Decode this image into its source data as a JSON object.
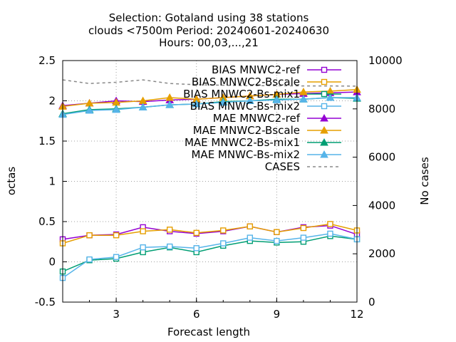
{
  "chart_data": {
    "type": "line",
    "title_lines": [
      "Selection: Gotaland using    38 stations",
      "clouds <7500m   Period: 20240601-20240630",
      "Hours: 00,03,...,21"
    ],
    "xlabel": "Forecast length",
    "ylabel": "octas",
    "y2label": "No cases",
    "xlim": [
      1,
      12
    ],
    "ylim": [
      -0.5,
      2.5
    ],
    "y2lim": [
      0,
      10000
    ],
    "xticks": [
      "3",
      "6",
      "9",
      "12"
    ],
    "yticks": [
      "-0.5",
      "0",
      "0.5",
      "1",
      "1.5",
      "2",
      "2.5"
    ],
    "y2ticks": [
      "0",
      "2000",
      "4000",
      "6000",
      "8000",
      "10000"
    ],
    "grid": true,
    "legend_position": "top-right",
    "x": [
      1,
      2,
      3,
      4,
      5,
      6,
      7,
      8,
      9,
      10,
      11,
      12
    ],
    "series": [
      {
        "name": "BIAS MNWC2-ref",
        "axis": "y1",
        "color": "#9400d3",
        "marker": "open-square",
        "dash": "",
        "values": [
          0.28,
          0.33,
          0.34,
          0.43,
          0.38,
          0.35,
          0.38,
          0.44,
          0.37,
          0.43,
          0.45,
          0.34
        ]
      },
      {
        "name": "BIAS MNWC2-Bscale",
        "axis": "y1",
        "color": "#e69f00",
        "marker": "open-square",
        "dash": "",
        "values": [
          0.23,
          0.33,
          0.33,
          0.38,
          0.4,
          0.36,
          0.39,
          0.44,
          0.37,
          0.42,
          0.47,
          0.39
        ]
      },
      {
        "name": "BIAS MNWC2-Bs-mix1",
        "axis": "y1",
        "color": "#009e73",
        "marker": "open-square",
        "dash": "",
        "values": [
          -0.12,
          0.02,
          0.04,
          0.12,
          0.18,
          0.12,
          0.2,
          0.26,
          0.24,
          0.25,
          0.32,
          0.28
        ]
      },
      {
        "name": "BIAS MNWC-Bs-mix2",
        "axis": "y1",
        "color": "#56b4e9",
        "marker": "open-square",
        "dash": "",
        "values": [
          -0.2,
          0.03,
          0.06,
          0.18,
          0.19,
          0.17,
          0.23,
          0.3,
          0.26,
          0.3,
          0.35,
          0.28
        ]
      },
      {
        "name": "MAE MNWC2-ref",
        "axis": "y1",
        "color": "#9400d3",
        "marker": "filled-triangle",
        "dash": "",
        "values": [
          1.94,
          1.97,
          2.0,
          1.99,
          2.01,
          2.02,
          2.04,
          2.06,
          2.08,
          2.09,
          2.1,
          2.11
        ]
      },
      {
        "name": "MAE MNWC2-Bscale",
        "axis": "y1",
        "color": "#e69f00",
        "marker": "filled-triangle",
        "dash": "",
        "values": [
          1.93,
          1.97,
          1.98,
          2.0,
          2.04,
          2.02,
          2.04,
          2.06,
          2.08,
          2.11,
          2.12,
          2.14
        ]
      },
      {
        "name": "MAE MNWC2-Bs-mix1",
        "axis": "y1",
        "color": "#009e73",
        "marker": "filled-triangle",
        "dash": "",
        "values": [
          1.84,
          1.89,
          1.9,
          1.92,
          1.95,
          1.96,
          1.99,
          2.0,
          2.02,
          2.02,
          2.04,
          2.03
        ]
      },
      {
        "name": "MAE MNWC-Bs-mix2",
        "axis": "y1",
        "color": "#56b4e9",
        "marker": "filled-triangle",
        "dash": "",
        "values": [
          1.83,
          1.88,
          1.89,
          1.92,
          1.95,
          1.96,
          1.98,
          2.0,
          2.01,
          2.02,
          2.04,
          2.04
        ]
      },
      {
        "name": "CASES",
        "axis": "y2",
        "color": "#888888",
        "marker": "none",
        "dash": "4,4",
        "values": [
          9200,
          9050,
          9100,
          9200,
          9050,
          9000,
          8980,
          8960,
          8960,
          8950,
          8950,
          8940
        ]
      }
    ]
  }
}
